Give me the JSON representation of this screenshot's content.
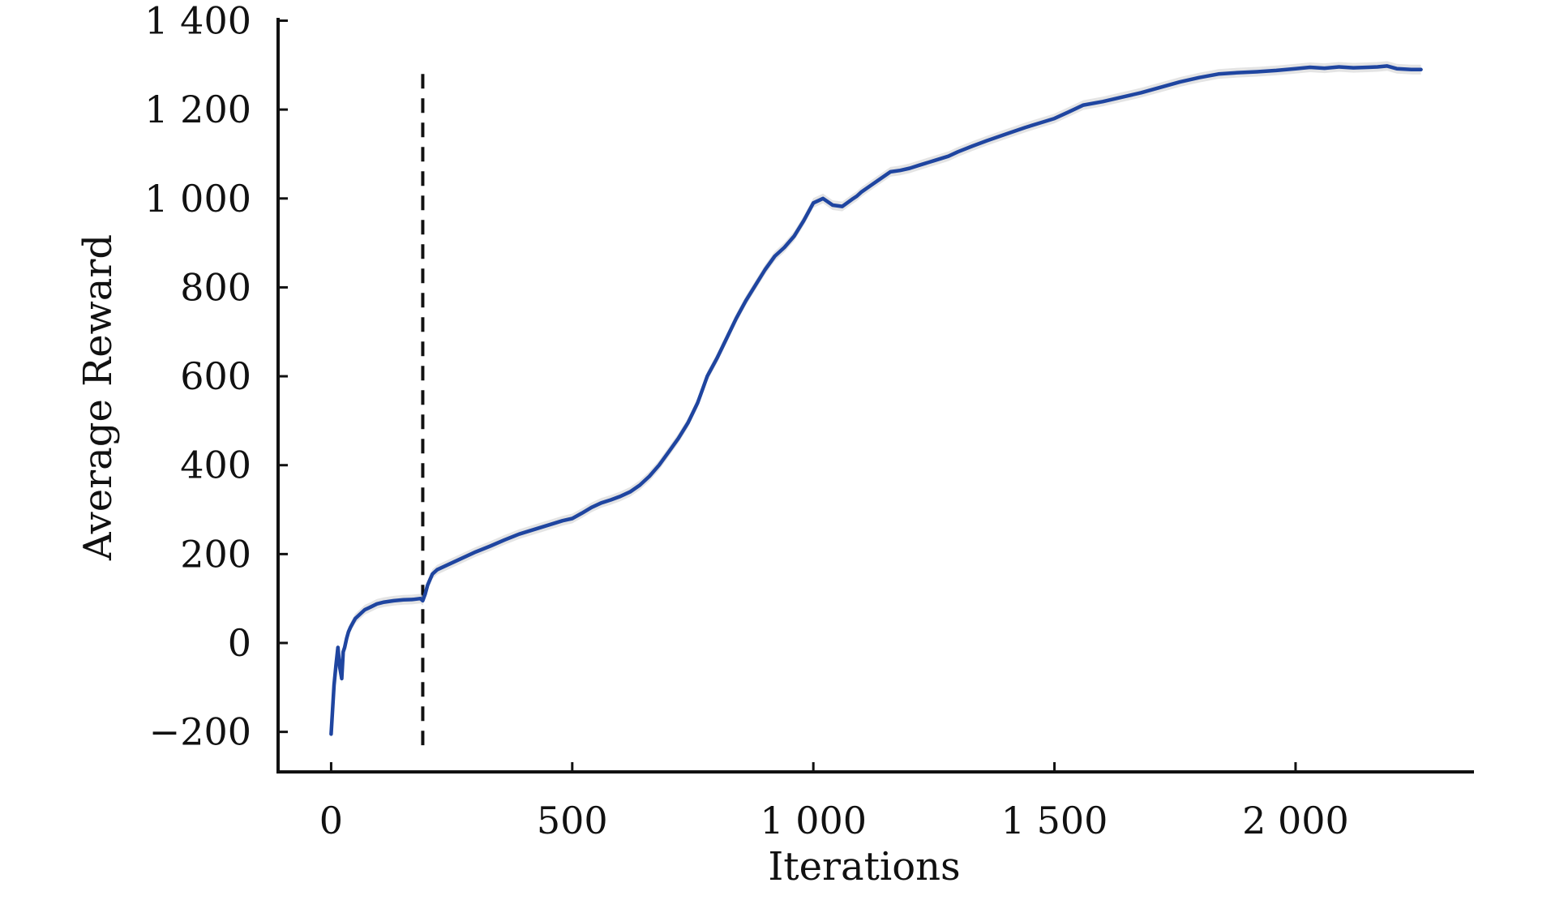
{
  "chart_data": {
    "type": "line",
    "title": "",
    "xlabel": "Iterations",
    "ylabel": "Average Reward",
    "xlim": [
      -110,
      2370
    ],
    "ylim": [
      -290,
      1410
    ],
    "x_ticks": [
      0,
      500,
      1000,
      1500,
      2000
    ],
    "x_tick_labels": [
      "0",
      "500",
      "1 000",
      "1 500",
      "2 000"
    ],
    "y_ticks": [
      -200,
      0,
      200,
      400,
      600,
      800,
      1000,
      1200,
      1400
    ],
    "y_tick_labels": [
      "−200",
      "0",
      "200",
      "400",
      "600",
      "800",
      "1 000",
      "1 200",
      "1 400"
    ],
    "grid": false,
    "legend": "none",
    "line_color": "#1f45a0",
    "band_color": "#d8d8d8",
    "vline": {
      "x": 190,
      "y_range": [
        -230,
        1280
      ],
      "style": "dashed",
      "color": "#111111"
    },
    "series": [
      {
        "x": [
          0,
          3,
          6,
          10,
          14,
          18,
          22,
          25,
          28,
          32,
          36,
          40,
          45,
          50,
          60,
          70,
          80,
          95,
          110,
          130,
          150,
          170,
          185,
          190,
          195,
          200,
          210,
          220,
          240,
          260,
          280,
          300,
          330,
          360,
          390,
          420,
          450,
          480,
          500,
          520,
          540,
          560,
          580,
          600,
          620,
          640,
          660,
          680,
          700,
          720,
          740,
          760,
          770,
          780,
          800,
          820,
          840,
          860,
          880,
          900,
          920,
          940,
          960,
          980,
          1000,
          1020,
          1040,
          1060,
          1070,
          1080,
          1090,
          1100,
          1120,
          1140,
          1160,
          1180,
          1200,
          1220,
          1250,
          1280,
          1300,
          1330,
          1360,
          1400,
          1440,
          1470,
          1500,
          1530,
          1560,
          1600,
          1640,
          1680,
          1720,
          1760,
          1800,
          1840,
          1880,
          1920,
          1960,
          2000,
          2030,
          2060,
          2090,
          2120,
          2150,
          2170,
          2190,
          2210,
          2240,
          2260
        ],
        "y": [
          -205,
          -150,
          -95,
          -50,
          -10,
          -55,
          -80,
          -20,
          -10,
          10,
          25,
          35,
          45,
          55,
          65,
          75,
          80,
          88,
          92,
          95,
          97,
          98,
          100,
          95,
          110,
          130,
          155,
          165,
          175,
          185,
          195,
          205,
          218,
          232,
          245,
          255,
          265,
          275,
          280,
          292,
          305,
          315,
          322,
          330,
          340,
          355,
          375,
          400,
          430,
          460,
          495,
          540,
          570,
          600,
          640,
          685,
          730,
          770,
          805,
          840,
          870,
          890,
          915,
          950,
          990,
          1000,
          985,
          982,
          990,
          998,
          1005,
          1015,
          1030,
          1045,
          1060,
          1063,
          1068,
          1075,
          1085,
          1095,
          1105,
          1118,
          1130,
          1145,
          1160,
          1170,
          1180,
          1195,
          1210,
          1218,
          1228,
          1238,
          1250,
          1262,
          1272,
          1280,
          1283,
          1285,
          1288,
          1292,
          1295,
          1293,
          1296,
          1294,
          1295,
          1296,
          1298,
          1292,
          1290,
          1290
        ]
      }
    ]
  }
}
